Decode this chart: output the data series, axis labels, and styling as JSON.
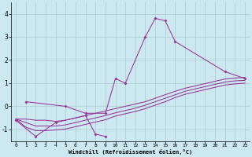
{
  "xlabel": "Windchill (Refroidissement éolien,°C)",
  "background_color": "#cce8f0",
  "grid_color": "#aacccc",
  "line_color": "#993399",
  "x_ticks": [
    0,
    1,
    2,
    3,
    4,
    5,
    6,
    7,
    8,
    9,
    10,
    11,
    12,
    13,
    14,
    15,
    16,
    17,
    18,
    19,
    20,
    21,
    22,
    23
  ],
  "ylim": [
    -1.5,
    4.5
  ],
  "yticks": [
    -1,
    0,
    1,
    2,
    3,
    4
  ],
  "series_main": [
    null,
    0.2,
    null,
    null,
    null,
    0.0,
    null,
    -0.3,
    null,
    -0.3,
    1.2,
    1.0,
    null,
    3.0,
    3.8,
    3.7,
    2.8,
    null,
    null,
    null,
    null,
    1.5,
    null,
    1.2
  ],
  "series_low": [
    -0.6,
    null,
    -1.3,
    null,
    -0.7,
    null,
    null,
    -0.4,
    -1.2,
    -1.3,
    null,
    null,
    null,
    null,
    null,
    null,
    null,
    null,
    null,
    null,
    null,
    null,
    null,
    null
  ],
  "trend_lines": [
    [
      -0.55,
      -0.55,
      -0.6,
      -0.6,
      -0.65,
      -0.6,
      -0.5,
      -0.4,
      -0.3,
      -0.2,
      -0.1,
      0.0,
      0.1,
      0.2,
      0.35,
      0.5,
      0.65,
      0.78,
      0.88,
      0.98,
      1.08,
      1.18,
      1.22,
      1.25
    ],
    [
      -0.55,
      -0.7,
      -0.85,
      -0.85,
      -0.85,
      -0.8,
      -0.7,
      -0.6,
      -0.5,
      -0.4,
      -0.28,
      -0.18,
      -0.08,
      0.05,
      0.2,
      0.35,
      0.5,
      0.65,
      0.75,
      0.85,
      0.95,
      1.05,
      1.1,
      1.12
    ],
    [
      -0.55,
      -0.9,
      -1.05,
      -1.05,
      -1.02,
      -0.98,
      -0.88,
      -0.78,
      -0.68,
      -0.58,
      -0.42,
      -0.32,
      -0.22,
      -0.1,
      0.05,
      0.2,
      0.38,
      0.52,
      0.62,
      0.72,
      0.82,
      0.92,
      0.97,
      1.0
    ]
  ]
}
